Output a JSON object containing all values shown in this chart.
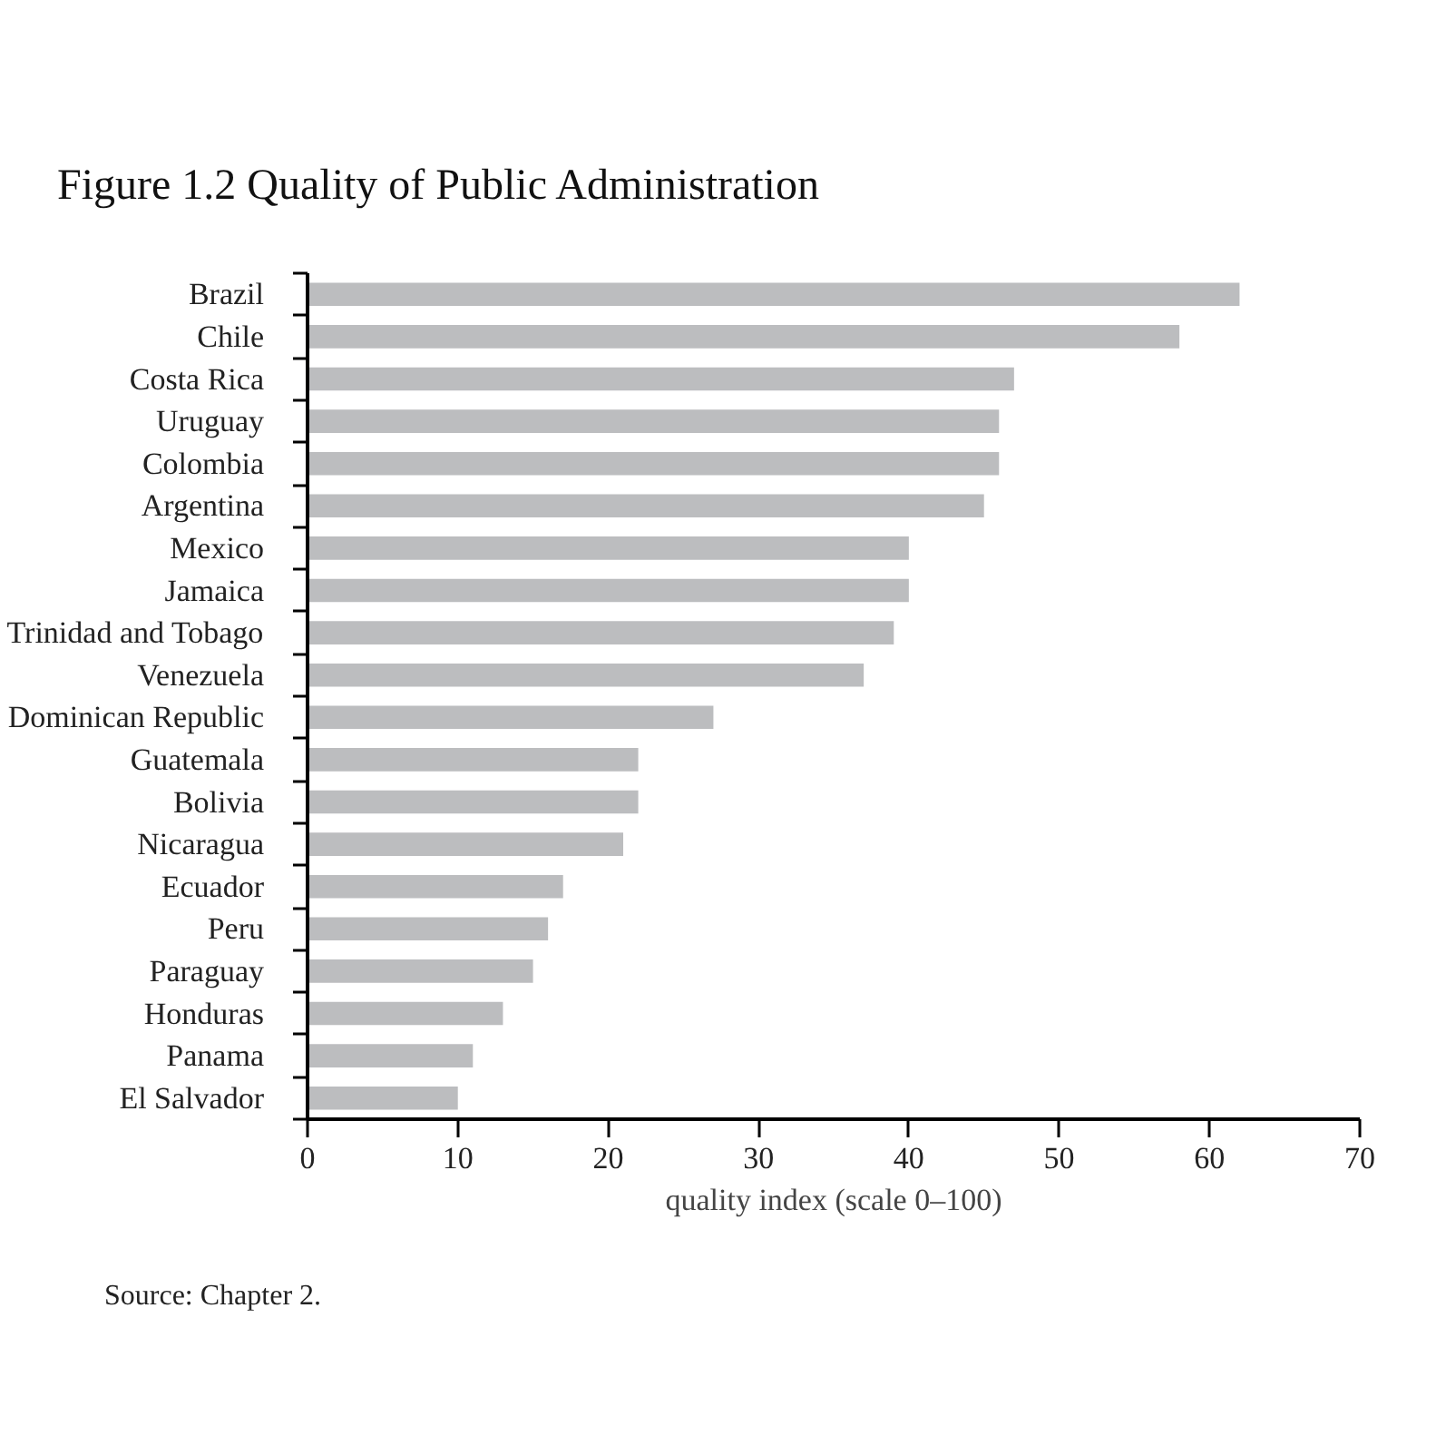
{
  "chart_data": {
    "type": "bar",
    "orientation": "horizontal",
    "title": "Figure 1.2 Quality of Public Administration",
    "xlabel": "quality index (scale 0–100)",
    "categories": [
      "Brazil",
      "Chile",
      "Costa Rica",
      "Uruguay",
      "Colombia",
      "Argentina",
      "Mexico",
      "Jamaica",
      "Trinidad and Tobago",
      "Venezuela",
      "Dominican Republic",
      "Guatemala",
      "Bolivia",
      "Nicaragua",
      "Ecuador",
      "Peru",
      "Paraguay",
      "Honduras",
      "Panama",
      "El Salvador"
    ],
    "values": [
      62,
      58,
      47,
      46,
      46,
      45,
      40,
      40,
      39,
      37,
      27,
      22,
      22,
      21,
      17,
      16,
      15,
      13,
      11,
      10
    ],
    "color": "#bcbdbf",
    "xlim": [
      0,
      70
    ],
    "xticks": [
      0,
      10,
      20,
      30,
      40,
      50,
      60,
      70
    ],
    "grid": false,
    "annotations": [
      "Source: Chapter 2."
    ]
  }
}
